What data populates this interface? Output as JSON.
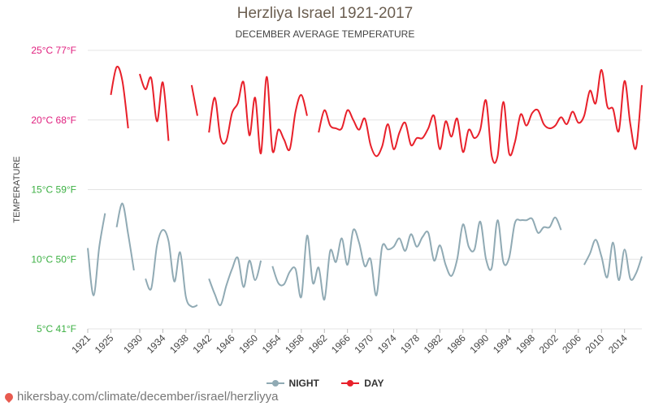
{
  "chart_data": {
    "type": "line",
    "title": "Herzliya Israel 1921-2017",
    "subtitle": "DECEMBER AVERAGE TEMPERATURE",
    "ylabel": "TEMPERATURE",
    "ylim": [
      5,
      25
    ],
    "xlim": [
      1921,
      2017
    ],
    "y_ticks": [
      {
        "value": 25,
        "label": "25°C 77°F",
        "color": "#e0207f"
      },
      {
        "value": 20,
        "label": "20°C 68°F",
        "color": "#e0207f"
      },
      {
        "value": 15,
        "label": "15°C 59°F",
        "color": "#3cb043"
      },
      {
        "value": 10,
        "label": "10°C 50°F",
        "color": "#3cb043"
      },
      {
        "value": 5,
        "label": "5°C 41°F",
        "color": "#3cb043"
      }
    ],
    "x_ticks": [
      1921,
      1925,
      1930,
      1934,
      1938,
      1942,
      1946,
      1950,
      1954,
      1958,
      1962,
      1966,
      1970,
      1974,
      1978,
      1982,
      1986,
      1990,
      1994,
      1998,
      2002,
      2006,
      2010,
      2014
    ],
    "grid": true,
    "legend_placement": "bottom",
    "series": [
      {
        "name": "NIGHT",
        "color": "#90aab4",
        "x": [
          1921,
          1922,
          1923,
          1924,
          1925,
          1926,
          1927,
          1928,
          1929,
          1930,
          1931,
          1932,
          1933,
          1934,
          1935,
          1936,
          1937,
          1938,
          1939,
          1940,
          1941,
          1942,
          1943,
          1944,
          1945,
          1946,
          1947,
          1948,
          1949,
          1950,
          1951,
          1952,
          1953,
          1954,
          1955,
          1956,
          1957,
          1958,
          1959,
          1960,
          1961,
          1962,
          1963,
          1964,
          1965,
          1966,
          1967,
          1968,
          1969,
          1970,
          1971,
          1972,
          1973,
          1974,
          1975,
          1976,
          1977,
          1978,
          1979,
          1980,
          1981,
          1982,
          1983,
          1984,
          1985,
          1986,
          1987,
          1988,
          1989,
          1990,
          1991,
          1992,
          1993,
          1994,
          1995,
          1996,
          1997,
          1998,
          1999,
          2000,
          2001,
          2002,
          2003,
          2004,
          2005,
          2006,
          2007,
          2008,
          2009,
          2010,
          2011,
          2012,
          2013,
          2014,
          2015,
          2016,
          2017
        ],
        "values": [
          10.8,
          7.4,
          10.9,
          13.3,
          null,
          12.3,
          14.0,
          11.8,
          9.2,
          null,
          8.6,
          7.9,
          11.0,
          12.1,
          11.3,
          8.4,
          10.5,
          7.3,
          6.6,
          6.7,
          null,
          8.6,
          7.5,
          6.7,
          8.1,
          9.3,
          10.1,
          8.0,
          9.9,
          8.5,
          9.9,
          null,
          9.5,
          8.3,
          8.2,
          9.1,
          9.3,
          7.3,
          11.7,
          8.3,
          9.4,
          7.1,
          10.6,
          9.8,
          11.5,
          9.6,
          12.1,
          11.2,
          9.5,
          10.0,
          7.4,
          10.9,
          10.7,
          10.9,
          11.5,
          10.6,
          11.8,
          10.9,
          11.6,
          11.9,
          9.9,
          11.0,
          9.6,
          8.8,
          10.0,
          12.5,
          10.9,
          10.7,
          12.7,
          10.0,
          9.4,
          12.8,
          9.8,
          10.1,
          12.6,
          12.8,
          12.8,
          12.9,
          11.9,
          12.3,
          12.3,
          13.0,
          12.1,
          null,
          null,
          null,
          9.6,
          10.4,
          11.4,
          10.2,
          8.7,
          11.2,
          8.5,
          10.7,
          8.6,
          9.0,
          10.2
        ]
      },
      {
        "name": "DAY",
        "color": "#e8202a",
        "x": [
          1921,
          1922,
          1923,
          1924,
          1925,
          1926,
          1927,
          1928,
          1929,
          1930,
          1931,
          1932,
          1933,
          1934,
          1935,
          1936,
          1937,
          1938,
          1939,
          1940,
          1941,
          1942,
          1943,
          1944,
          1945,
          1946,
          1947,
          1948,
          1949,
          1950,
          1951,
          1952,
          1953,
          1954,
          1955,
          1956,
          1957,
          1958,
          1959,
          1960,
          1961,
          1962,
          1963,
          1964,
          1965,
          1966,
          1967,
          1968,
          1969,
          1970,
          1971,
          1972,
          1973,
          1974,
          1975,
          1976,
          1977,
          1978,
          1979,
          1980,
          1981,
          1982,
          1983,
          1984,
          1985,
          1986,
          1987,
          1988,
          1989,
          1990,
          1991,
          1992,
          1993,
          1994,
          1995,
          1996,
          1997,
          1998,
          1999,
          2000,
          2001,
          2002,
          2003,
          2004,
          2005,
          2006,
          2007,
          2008,
          2009,
          2010,
          2011,
          2012,
          2013,
          2014,
          2015,
          2016,
          2017
        ],
        "values": [
          null,
          null,
          null,
          null,
          21.8,
          23.8,
          22.8,
          19.4,
          null,
          23.3,
          22.2,
          23.0,
          19.9,
          22.7,
          18.5,
          null,
          null,
          null,
          22.5,
          20.3,
          null,
          19.1,
          21.6,
          18.7,
          18.5,
          20.5,
          21.2,
          22.7,
          18.9,
          21.6,
          17.6,
          23.1,
          17.8,
          19.3,
          18.6,
          17.9,
          20.6,
          21.8,
          20.3,
          null,
          19.1,
          20.7,
          19.6,
          19.4,
          19.4,
          20.7,
          20.0,
          19.3,
          20.1,
          18.2,
          17.4,
          18.1,
          19.7,
          17.9,
          19.1,
          19.8,
          18.2,
          18.7,
          18.7,
          19.4,
          20.3,
          17.9,
          19.9,
          18.8,
          20.1,
          17.7,
          19.3,
          18.7,
          19.3,
          21.4,
          17.4,
          17.4,
          21.3,
          17.6,
          18.4,
          20.4,
          19.6,
          20.5,
          20.7,
          19.7,
          19.4,
          19.6,
          20.2,
          19.7,
          20.6,
          19.8,
          20.3,
          22.1,
          21.2,
          23.6,
          21.0,
          20.8,
          19.2,
          22.8,
          19.7,
          18.0,
          22.5
        ]
      }
    ]
  },
  "source": {
    "text": "hikersbay.com/climate/december/israel/herzliyya",
    "icon": "location-pin-icon"
  }
}
